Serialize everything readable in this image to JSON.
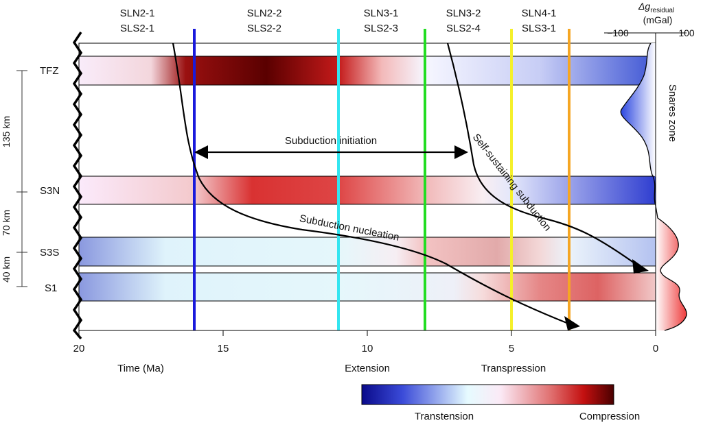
{
  "stages": [
    {
      "top": "SLN2-1",
      "bottom": "SLS2-1"
    },
    {
      "top": "SLN2-2",
      "bottom": "SLS2-2"
    },
    {
      "top": "SLN3-1",
      "bottom": "SLS2-3"
    },
    {
      "top": "SLN3-2",
      "bottom": "SLS2-4"
    },
    {
      "top": "SLN4-1",
      "bottom": "SLS3-1"
    }
  ],
  "event_lines": [
    {
      "time_ma": 16,
      "color": "#1a1adc"
    },
    {
      "time_ma": 11,
      "color": "#33e5f0"
    },
    {
      "time_ma": 8,
      "color": "#22dd22"
    },
    {
      "time_ma": 5,
      "color": "#f5f02a"
    },
    {
      "time_ma": 3,
      "color": "#f5a623"
    }
  ],
  "bands": [
    {
      "label": "TFZ",
      "stops": [
        [
          20,
          "#f9ecfa"
        ],
        [
          17.5,
          "#f3d6dc"
        ],
        [
          16.3,
          "#9a1010"
        ],
        [
          13.5,
          "#5a0000"
        ],
        [
          11,
          "#c41a1a"
        ],
        [
          9.5,
          "#f3b9b9"
        ],
        [
          8,
          "#f6f6ff"
        ],
        [
          4,
          "#c7cdf5"
        ],
        [
          0,
          "#3f56d4"
        ]
      ]
    },
    {
      "label": "S3N",
      "stops": [
        [
          20,
          "#fbeafb"
        ],
        [
          16,
          "#f3c9cc"
        ],
        [
          14,
          "#d93232"
        ],
        [
          11,
          "#de4545"
        ],
        [
          8,
          "#f1b8b8"
        ],
        [
          6,
          "#f9eef2"
        ],
        [
          5,
          "#e3e7fb"
        ],
        [
          0,
          "#2f3ed0"
        ]
      ]
    },
    {
      "label": "S3S",
      "stops": [
        [
          20,
          "#8a98df"
        ],
        [
          17,
          "#dff3fb"
        ],
        [
          11,
          "#e5f7fb"
        ],
        [
          9,
          "#f6eef3"
        ],
        [
          8,
          "#f3c3c3"
        ],
        [
          5.5,
          "#e2aaaa"
        ],
        [
          4,
          "#f3d8d8"
        ],
        [
          3,
          "#ebf3fb"
        ],
        [
          0,
          "#b4c2f0"
        ]
      ]
    },
    {
      "label": "S1",
      "stops": [
        [
          20,
          "#8a98df"
        ],
        [
          17,
          "#dff3fb"
        ],
        [
          11,
          "#e5f7fb"
        ],
        [
          7,
          "#eef0f8"
        ],
        [
          6,
          "#f6dcdc"
        ],
        [
          4,
          "#e58686"
        ],
        [
          2,
          "#dd6363"
        ],
        [
          0,
          "#f1c8c8"
        ]
      ]
    }
  ],
  "distances": [
    {
      "label": "135 km"
    },
    {
      "label": "70 km"
    },
    {
      "label": "40 km"
    }
  ],
  "x_axis": {
    "title": "Time (Ma)",
    "min": 20,
    "max": 0,
    "ticks": [
      20,
      15,
      10,
      5,
      0
    ],
    "tick_labels": [
      "20",
      "15",
      "10",
      "5",
      "0"
    ],
    "annotations": [
      {
        "label": "Extension",
        "at_ma": 10
      },
      {
        "label": "Transpression",
        "at_ma": 5
      }
    ]
  },
  "annotations": {
    "subduction_initiation": "Subduction initiation",
    "subduction_nucleation": "Subduction nucleation",
    "self_sustaining": "Self-sustaining subduction",
    "snares_zone": "Snares zone"
  },
  "gravity_axis": {
    "symbol": "Δg",
    "subscript": "residual",
    "unit": "(mGal)",
    "min_label": "−100",
    "max_label": "100",
    "negative_color": "#2b46e0",
    "positive_color": "#ee3b3b"
  },
  "colorbar": {
    "left_label": "Transtension",
    "right_label": "Compression"
  },
  "colors": {
    "frame": "#000000"
  }
}
